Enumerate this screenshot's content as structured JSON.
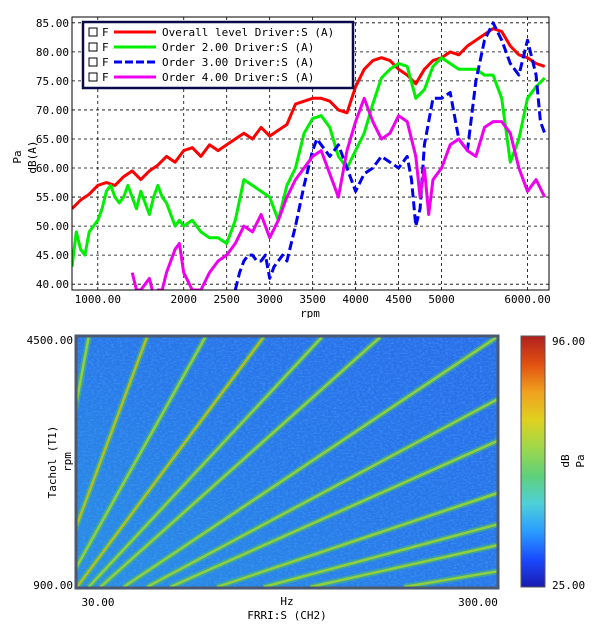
{
  "chart_data": [
    {
      "type": "line",
      "ylabel_unit": "Pa",
      "ylabel": "dB(A)",
      "xlabel": "rpm",
      "xlim": [
        700,
        6250
      ],
      "ylim": [
        39,
        86
      ],
      "yticks": [
        40,
        45,
        50,
        55,
        60,
        65,
        70,
        75,
        80,
        85
      ],
      "ytick_labels": [
        "40.00",
        "45.00",
        "50.00",
        "55.00",
        "60.00",
        "65.00",
        "70.00",
        "75.00",
        "80.00",
        "85.00"
      ],
      "xticks": [
        1000,
        2000,
        2500,
        3000,
        3500,
        4000,
        4500,
        5000,
        6000
      ],
      "xtick_labels": [
        "1000.00",
        "2000",
        "2500",
        "3000",
        "3500",
        "4000",
        "4500",
        "5000",
        "6000.00"
      ],
      "grid": true,
      "legend_position": "top-left",
      "series": [
        {
          "name": "Overall level Driver:S (A)",
          "flag": "F",
          "color": "#ff0000",
          "x": [
            700,
            800,
            900,
            1000,
            1100,
            1200,
            1300,
            1400,
            1500,
            1600,
            1700,
            1800,
            1900,
            2000,
            2100,
            2200,
            2300,
            2400,
            2500,
            2600,
            2700,
            2800,
            2900,
            3000,
            3100,
            3200,
            3300,
            3400,
            3500,
            3600,
            3700,
            3800,
            3900,
            4000,
            4100,
            4200,
            4300,
            4400,
            4500,
            4600,
            4700,
            4800,
            4900,
            5000,
            5100,
            5200,
            5300,
            5400,
            5500,
            5600,
            5700,
            5800,
            5900,
            6000,
            6100,
            6200
          ],
          "y": [
            53,
            54.5,
            55.5,
            57,
            57.5,
            57,
            58.5,
            59.5,
            58,
            59.5,
            60.5,
            62,
            61,
            63,
            63.5,
            62,
            64,
            63,
            64,
            65,
            66,
            65,
            67,
            65.5,
            66.5,
            67.5,
            71,
            71.5,
            72,
            72,
            71.5,
            70,
            69.5,
            74,
            77,
            78.5,
            79,
            78.5,
            77,
            76,
            74.5,
            77,
            78.5,
            79,
            80,
            79.5,
            81,
            82,
            83,
            84,
            83.5,
            81,
            79.5,
            79,
            78,
            77.5
          ]
        },
        {
          "name": "Order 2.00 Driver:S (A)",
          "flag": "F",
          "color": "#00ee00",
          "x": [
            700,
            750,
            800,
            850,
            900,
            950,
            1000,
            1050,
            1100,
            1150,
            1200,
            1250,
            1300,
            1350,
            1400,
            1450,
            1500,
            1550,
            1600,
            1650,
            1700,
            1750,
            1800,
            1850,
            1900,
            1950,
            2000,
            2100,
            2200,
            2300,
            2400,
            2500,
            2600,
            2700,
            2800,
            2900,
            3000,
            3100,
            3200,
            3300,
            3400,
            3500,
            3600,
            3700,
            3800,
            3900,
            4000,
            4100,
            4200,
            4300,
            4400,
            4500,
            4600,
            4700,
            4800,
            4900,
            5000,
            5100,
            5200,
            5300,
            5400,
            5500,
            5600,
            5700,
            5800,
            5900,
            6000,
            6100,
            6200
          ],
          "y": [
            43,
            49,
            46,
            45,
            49,
            50,
            51,
            53,
            56,
            57,
            55,
            54,
            55,
            57,
            55,
            53,
            56,
            54,
            52,
            55,
            57,
            55,
            54,
            52,
            50,
            51,
            50,
            51,
            49,
            48,
            48,
            47,
            51,
            58,
            57,
            56,
            55,
            51,
            57,
            60,
            66,
            68.5,
            69,
            67,
            62,
            60,
            63,
            66,
            71,
            75.5,
            77,
            78,
            77.5,
            72,
            73.5,
            77.5,
            79,
            78,
            77,
            77,
            77,
            76,
            76,
            72,
            61,
            65,
            72,
            74,
            75.5
          ]
        },
        {
          "name": "Order 3.00 Driver:S (A)",
          "flag": "F",
          "color": "#0000ee",
          "x": [
            2600,
            2650,
            2700,
            2750,
            2800,
            2850,
            2900,
            2950,
            3000,
            3050,
            3100,
            3150,
            3200,
            3300,
            3400,
            3500,
            3550,
            3600,
            3700,
            3800,
            3900,
            4000,
            4100,
            4200,
            4300,
            4400,
            4500,
            4600,
            4650,
            4700,
            4750,
            4800,
            4900,
            5000,
            5100,
            5200,
            5300,
            5400,
            5500,
            5600,
            5700,
            5800,
            5900,
            6000,
            6100,
            6150,
            6200
          ],
          "y": [
            39,
            42,
            44,
            45,
            45,
            44,
            44,
            45,
            41,
            43,
            44,
            45,
            44,
            50,
            57,
            63,
            65,
            64,
            62,
            64,
            60,
            56,
            59,
            60,
            62,
            61,
            60,
            62,
            58,
            50,
            53,
            64,
            72,
            72,
            73,
            65,
            63,
            75,
            82,
            85,
            82,
            78,
            76,
            82,
            76,
            68,
            66
          ]
        },
        {
          "name": "Order 4.00 Driver:S (A)",
          "flag": "F",
          "color": "#ee00ee",
          "x": [
            1400,
            1450,
            1500,
            1550,
            1600,
            1650,
            1700,
            1750,
            1800,
            1850,
            1900,
            1950,
            2000,
            2100,
            2200,
            2300,
            2400,
            2500,
            2600,
            2700,
            2800,
            2900,
            3000,
            3100,
            3200,
            3300,
            3400,
            3500,
            3600,
            3700,
            3800,
            3900,
            4000,
            4100,
            4200,
            4300,
            4400,
            4500,
            4600,
            4700,
            4750,
            4800,
            4850,
            4900,
            5000,
            5100,
            5200,
            5300,
            5400,
            5500,
            5600,
            5700,
            5800,
            5900,
            6000,
            6100,
            6200
          ],
          "y": [
            42,
            39,
            39,
            40,
            41,
            38,
            39,
            39,
            42,
            44,
            46,
            47,
            42,
            39,
            39,
            42,
            44,
            45,
            47,
            50,
            49,
            52,
            48,
            51,
            55,
            58,
            60,
            62,
            63,
            59,
            55,
            63,
            68,
            72,
            68,
            65,
            66,
            69,
            68,
            62,
            55,
            60,
            52,
            58,
            60,
            64,
            65,
            63,
            62,
            67,
            68,
            68,
            66,
            60,
            56,
            58,
            55
          ]
        }
      ]
    },
    {
      "type": "heatmap",
      "title": "Tachol (T1)",
      "ylabel": "rpm",
      "xlabel_unit": "Hz",
      "xlabel": "FRRI:S (CH2)",
      "xlim": [
        30,
        300
      ],
      "ylim": [
        900,
        4500
      ],
      "x_tick_labels": [
        "30.00",
        "300.00"
      ],
      "y_tick_labels": [
        "4500.00",
        "900.00"
      ],
      "colorbar": {
        "min": 25,
        "max": 96,
        "min_label": "25.00",
        "max_label": "96.00",
        "label": "dB",
        "unit": "Pa",
        "colors": [
          "#1a1ab0",
          "#1a4bff",
          "#2a9dff",
          "#4fd0d8",
          "#5fd07a",
          "#9fd84a",
          "#e0d020",
          "#f0a020",
          "#e05010",
          "#b02020"
        ]
      },
      "description_orders": [
        0.5,
        1,
        1.5,
        2,
        2.5,
        3,
        4,
        5,
        6,
        8,
        10,
        12,
        16
      ]
    }
  ]
}
